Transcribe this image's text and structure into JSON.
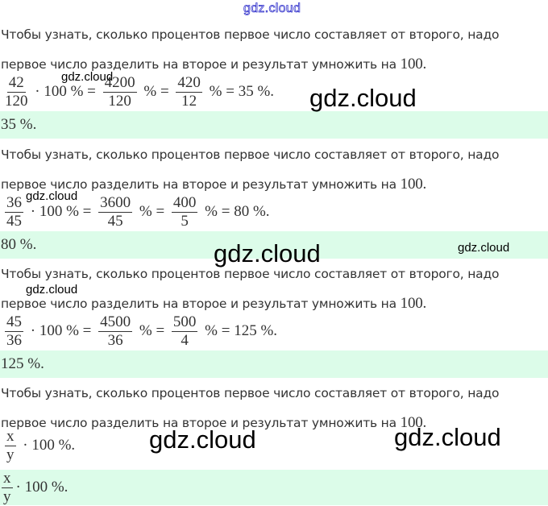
{
  "watermark": "gdz.cloud",
  "colors": {
    "answer_bg": "#dcfce9",
    "watermark_top": "#3333cc"
  },
  "blocks": [
    {
      "text1": "Чтобы узнать, сколько процентов первое число составляет от второго, надо",
      "text2": "первое число разделить на второе и результат умножить на ",
      "text2_num": "100.",
      "formula": [
        {
          "num": "42",
          "den": "120"
        },
        "· 100 % =",
        {
          "num": "4200",
          "den": "120"
        },
        "% =",
        {
          "num": "420",
          "den": "12"
        },
        "% = 35 %."
      ],
      "answer": [
        "35 %."
      ]
    },
    {
      "text1": "Чтобы узнать, сколько процентов первое число составляет от второго, надо",
      "text2": "первое число разделить на второе и результат умножить на ",
      "text2_num": "100.",
      "formula": [
        {
          "num": "36",
          "den": "45"
        },
        "· 100 % =",
        {
          "num": "3600",
          "den": "45"
        },
        "% =",
        {
          "num": "400",
          "den": "5"
        },
        "% = 80 %."
      ],
      "answer": [
        "80 %."
      ]
    },
    {
      "text1": "Чтобы узнать, сколько процентов первое число составляет от второго, надо",
      "text2": "первое число разделить на второе и результат умножить на ",
      "text2_num": "100.",
      "formula": [
        {
          "num": "45",
          "den": "36"
        },
        "· 100 % =",
        {
          "num": "4500",
          "den": "36"
        },
        "% =",
        {
          "num": "500",
          "den": "4"
        },
        "% = 125 %."
      ],
      "answer": [
        "125 %."
      ]
    },
    {
      "text1": "Чтобы узнать, сколько процентов первое число составляет от второго, надо",
      "text2": "первое число разделить на второе и результат умножить на ",
      "text2_num": "100.",
      "formula": [
        {
          "num": "x",
          "den": "y"
        },
        "· 100 %."
      ],
      "answer": [
        {
          "num": "x",
          "den": "y"
        },
        "· 100 %."
      ]
    }
  ]
}
